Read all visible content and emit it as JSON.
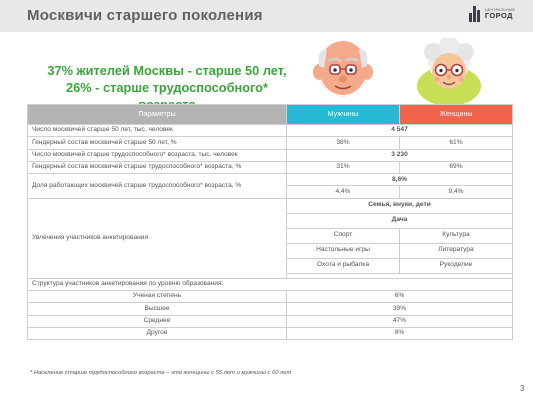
{
  "header": {
    "title": "Москвичи старшего поколения",
    "logo_small": "ЦЕНТРАЛЬНЫЙ",
    "logo_big": "ГОРОД"
  },
  "headline": {
    "line1": "37% жителей Москвы - старше 50 лет,",
    "line2": "26% - старше трудоспособного* возраста"
  },
  "table": {
    "headers": {
      "param": "Параметры",
      "men": "Мужчины",
      "women": "Женщины"
    },
    "rows": {
      "r1": {
        "label": "Число москвичей старше 50 лет, тыс. человек",
        "value": "4 547"
      },
      "r2": {
        "label": "Гендерный состав москвичей старше 50 лет, %",
        "men": "38%",
        "women": "61%"
      },
      "r3": {
        "label": "Число москвичей старше трудоспособного* возраста, тыс. человек",
        "value": "3 230"
      },
      "r4": {
        "label": "Гендерный состав москвичей старше трудоспособного* возраста, %",
        "men": "31%",
        "women": "69%"
      },
      "r5": {
        "label": "Доля работающих москвичей старше трудоспособного* возраста, %",
        "total": "8,6%",
        "men": "4,4%",
        "women": "9,4%"
      },
      "hobbies": {
        "label": "Увлечения участников анкетирования",
        "family": "Семья, внуки, дети",
        "dacha": "Дача",
        "sport": "Спорт",
        "culture": "Культура",
        "games": "Настольные игры",
        "literature": "Литература",
        "hunting": "Охота и рыбалка",
        "handicraft": "Рукоделие"
      },
      "education": {
        "label": "Структура участников анкетирования по уровню образования:",
        "items": [
          {
            "label": "Ученая степень",
            "value": "6%"
          },
          {
            "label": "Высшее",
            "value": "39%"
          },
          {
            "label": "Среднее",
            "value": "47%"
          },
          {
            "label": "Другое",
            "value": "8%"
          }
        ]
      }
    }
  },
  "footnote": "* Население старше трудоспособного возраста – это женщины с 55 лет и мужчины с 60 лет",
  "page_number": "3",
  "colors": {
    "header_bg": "#e8e8e8",
    "headline": "#3aa53a",
    "men": "#26b8d4",
    "women": "#f2644c",
    "param": "#b3b3b3"
  }
}
